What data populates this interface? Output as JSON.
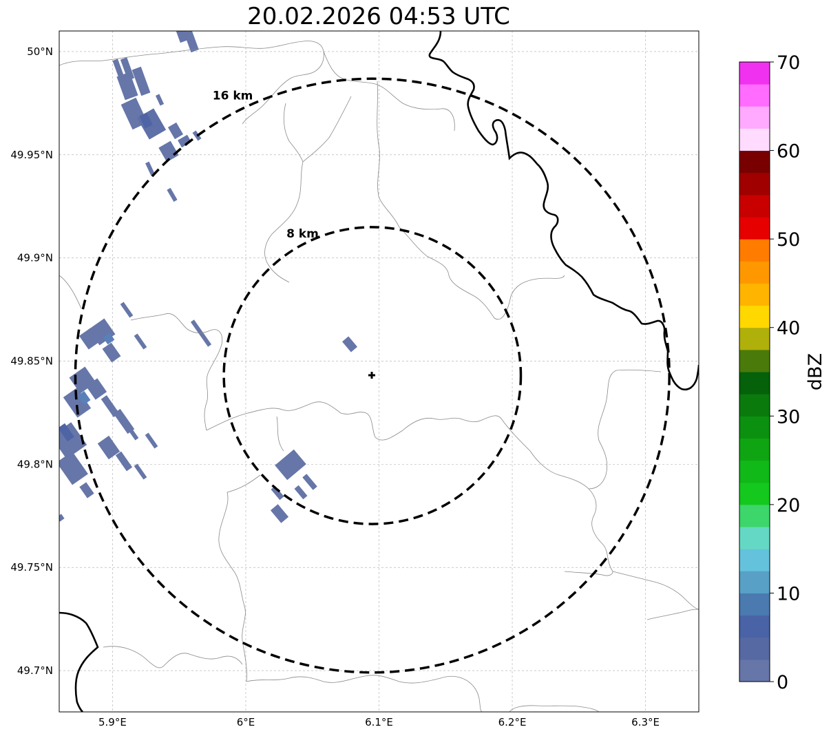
{
  "title": "20.02.2026 04:53 UTC",
  "map": {
    "lon_range": [
      5.86,
      6.34
    ],
    "lat_range": [
      49.68,
      50.01
    ],
    "lon_ticks": [
      {
        "value": 5.9,
        "label": "5.9°E"
      },
      {
        "value": 6.0,
        "label": "6°E"
      },
      {
        "value": 6.1,
        "label": "6.1°E"
      },
      {
        "value": 6.2,
        "label": "6.2°E"
      },
      {
        "value": 6.3,
        "label": "6.3°E"
      }
    ],
    "lat_ticks": [
      {
        "value": 50.0,
        "label": "50°N"
      },
      {
        "value": 49.95,
        "label": "49.95°N"
      },
      {
        "value": 49.9,
        "label": "49.9°N"
      },
      {
        "value": 49.85,
        "label": "49.85°N"
      },
      {
        "value": 49.8,
        "label": "49.8°N"
      },
      {
        "value": 49.75,
        "label": "49.75°N"
      },
      {
        "value": 49.7,
        "label": "49.7°N"
      }
    ],
    "center": {
      "lon": 6.095,
      "lat": 49.843
    },
    "rings": [
      {
        "radius_km": 8,
        "label": "8 km"
      },
      {
        "radius_km": 16,
        "label": "16 km"
      }
    ]
  },
  "colorbar": {
    "label": "dBZ",
    "min": 0,
    "max": 70,
    "ticks": [
      {
        "value": 0,
        "label": "0"
      },
      {
        "value": 10,
        "label": "10"
      },
      {
        "value": 20,
        "label": "20"
      },
      {
        "value": 30,
        "label": "30"
      },
      {
        "value": 40,
        "label": "40"
      },
      {
        "value": 50,
        "label": "50"
      },
      {
        "value": 60,
        "label": "60"
      },
      {
        "value": 70,
        "label": "70"
      }
    ],
    "colors": [
      "#6676a8",
      "#5769a3",
      "#4a63a6",
      "#4a7ab0",
      "#58a0c6",
      "#64c2dc",
      "#64d8c4",
      "#3dd66a",
      "#14c81e",
      "#10b818",
      "#0fa512",
      "#0c9010",
      "#0a7a0d",
      "#05610a",
      "#4a7a0a",
      "#b0b00a",
      "#ffd800",
      "#ffb400",
      "#ff9800",
      "#ff7c00",
      "#e60000",
      "#c80000",
      "#a00000",
      "#780000",
      "#ffdcff",
      "#ffaaff",
      "#ff6cff",
      "#f032f0"
    ]
  }
}
